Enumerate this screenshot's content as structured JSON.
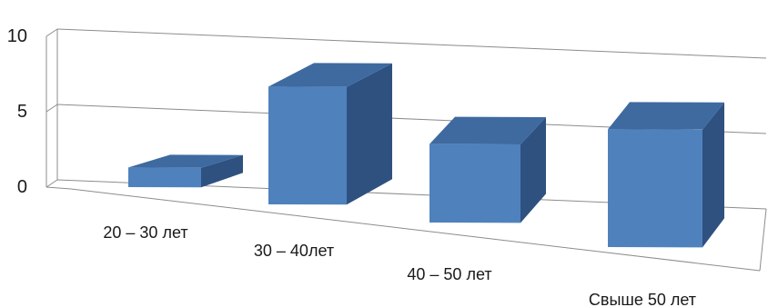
{
  "chart_data": {
    "type": "bar",
    "categories": [
      "20 – 30 лет",
      "30 – 40лет",
      "40 – 50 лет",
      "Свыше 50 лет"
    ],
    "values": [
      1,
      6,
      4,
      6
    ],
    "ylim": [
      0,
      10
    ],
    "yticks": [
      0,
      5,
      10
    ],
    "ytick_labels": [
      "0",
      "5",
      "10"
    ],
    "grid": true,
    "style": "3d-column",
    "colors": {
      "front": "#4F81BD",
      "top": "#3E6AA0",
      "side": "#2F5180",
      "grid": "#8C8C8C"
    }
  }
}
